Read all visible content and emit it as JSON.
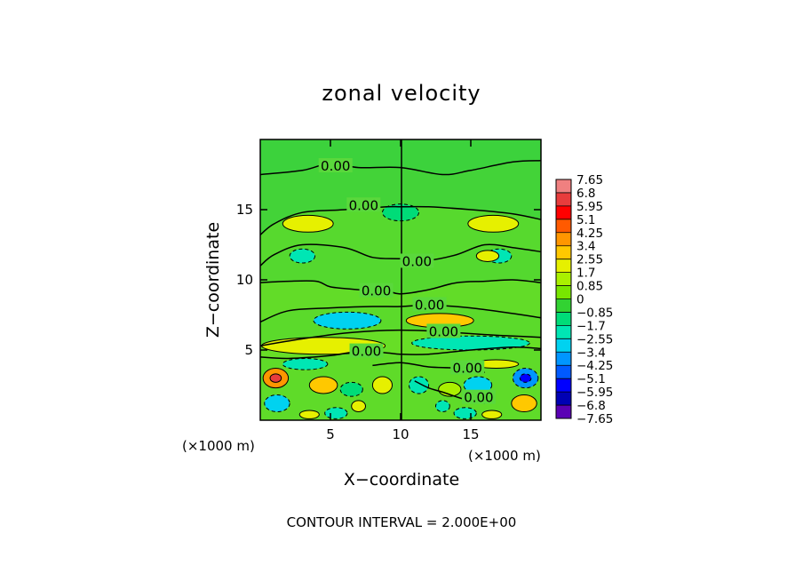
{
  "chart_data": {
    "type": "contour",
    "title": "zonal velocity",
    "xlabel": "X−coordinate",
    "ylabel": "Z−coordinate",
    "x_unit_left": "(×1000 m)",
    "x_unit_right": "(×1000 m)",
    "xlim": [
      0,
      20
    ],
    "ylim": [
      0,
      20
    ],
    "x_ticks": [
      {
        "value": 5,
        "label": "5"
      },
      {
        "value": 10,
        "label": "10"
      },
      {
        "value": 15,
        "label": "15"
      }
    ],
    "y_ticks": [
      {
        "value": 5,
        "label": "5"
      },
      {
        "value": 10,
        "label": "10"
      },
      {
        "value": 15,
        "label": "15"
      }
    ],
    "zero_contours": [
      {
        "points": [
          [
            0,
            17.5
          ],
          [
            3,
            17.8
          ],
          [
            5,
            18.3
          ],
          [
            7,
            18.0
          ],
          [
            10,
            18.0
          ],
          [
            13,
            17.5
          ],
          [
            15,
            17.8
          ],
          [
            18,
            18.4
          ],
          [
            20,
            18.5
          ]
        ],
        "label": "0.00",
        "label_at": [
          5.3,
          18.1
        ]
      },
      {
        "points": [
          [
            0,
            13.2
          ],
          [
            1,
            14.0
          ],
          [
            3,
            14.8
          ],
          [
            6,
            15.0
          ],
          [
            9,
            15.2
          ],
          [
            10,
            15.2
          ],
          [
            12,
            15.2
          ],
          [
            15,
            15.0
          ],
          [
            18,
            14.7
          ],
          [
            20,
            14.3
          ]
        ],
        "label": "0.00",
        "label_at": [
          7.3,
          15.3
        ]
      },
      {
        "points": [
          [
            0,
            11.0
          ],
          [
            1,
            11.8
          ],
          [
            3,
            12.5
          ],
          [
            6,
            12.3
          ],
          [
            8,
            11.6
          ],
          [
            10,
            11.5
          ],
          [
            12,
            11.4
          ],
          [
            14,
            11.8
          ],
          [
            16,
            12.5
          ],
          [
            18,
            12.3
          ],
          [
            20,
            12.0
          ]
        ],
        "label": "0.00",
        "label_at": [
          11.1,
          11.3
        ]
      },
      {
        "points": [
          [
            0,
            9.8
          ],
          [
            2,
            9.9
          ],
          [
            4,
            9.9
          ],
          [
            5,
            9.5
          ],
          [
            7,
            9.3
          ],
          [
            9,
            9.2
          ],
          [
            10,
            9.0
          ],
          [
            12,
            9.3
          ],
          [
            14,
            9.8
          ],
          [
            16,
            9.9
          ],
          [
            18,
            10.0
          ],
          [
            20,
            9.8
          ]
        ],
        "label": "0.00",
        "label_at": [
          8.2,
          9.2
        ]
      },
      {
        "points": [
          [
            0,
            7.0
          ],
          [
            2,
            7.8
          ],
          [
            5,
            8.0
          ],
          [
            8,
            8.1
          ],
          [
            10,
            8.1
          ],
          [
            12,
            8.2
          ],
          [
            15,
            8.0
          ],
          [
            18,
            7.6
          ],
          [
            20,
            7.3
          ]
        ],
        "label": "0.00",
        "label_at": [
          12.0,
          8.2
        ]
      },
      {
        "points": [
          [
            0,
            5.3
          ],
          [
            3,
            5.8
          ],
          [
            6,
            6.2
          ],
          [
            9,
            6.4
          ],
          [
            11,
            6.4
          ],
          [
            13,
            6.3
          ],
          [
            16,
            6.1
          ],
          [
            18,
            6.0
          ],
          [
            20,
            5.9
          ]
        ],
        "label": "0.00",
        "label_at": [
          13.0,
          6.3
        ]
      },
      {
        "points": [
          [
            0,
            4.5
          ],
          [
            2,
            4.4
          ],
          [
            5,
            4.6
          ],
          [
            7,
            4.9
          ],
          [
            9,
            4.8
          ],
          [
            10,
            4.7
          ],
          [
            12,
            4.7
          ],
          [
            15,
            5.0
          ],
          [
            18,
            5.2
          ],
          [
            20,
            5.1
          ]
        ],
        "label": "0.00",
        "label_at": [
          7.5,
          4.9
        ]
      },
      {
        "points": [
          [
            8,
            3.9
          ],
          [
            10,
            4.1
          ],
          [
            12,
            3.8
          ],
          [
            14,
            3.7
          ],
          [
            16,
            3.4
          ]
        ],
        "label": "0.00",
        "label_at": [
          14.7,
          3.7
        ]
      },
      {
        "points": [
          [
            11,
            2.8
          ],
          [
            12,
            2.3
          ],
          [
            13,
            2.0
          ],
          [
            14.5,
            1.5
          ],
          [
            16,
            1.2
          ]
        ],
        "label": "0.00",
        "label_at": [
          15.5,
          1.6
        ]
      }
    ],
    "features": [
      {
        "kind": "pos",
        "cx": 3.4,
        "cy": 14.0,
        "rx": 1.8,
        "ry": 0.6,
        "v": 2.2
      },
      {
        "kind": "pos",
        "cx": 16.6,
        "cy": 14.0,
        "rx": 1.8,
        "ry": 0.6,
        "v": 2.2
      },
      {
        "kind": "neg",
        "cx": 10.0,
        "cy": 14.8,
        "rx": 1.3,
        "ry": 0.6,
        "v": -1.5
      },
      {
        "kind": "neg",
        "cx": 3.0,
        "cy": 11.7,
        "rx": 0.9,
        "ry": 0.5,
        "v": -1.8
      },
      {
        "kind": "neg",
        "cx": 17.0,
        "cy": 11.7,
        "rx": 0.9,
        "ry": 0.5,
        "v": -1.8
      },
      {
        "kind": "pos",
        "cx": 16.2,
        "cy": 11.7,
        "rx": 0.8,
        "ry": 0.4,
        "v": 2.0
      },
      {
        "kind": "neg",
        "cx": 6.2,
        "cy": 7.1,
        "rx": 2.4,
        "ry": 0.6,
        "v": -2.6
      },
      {
        "kind": "pos",
        "cx": 12.8,
        "cy": 7.1,
        "rx": 2.4,
        "ry": 0.5,
        "v": 2.8
      },
      {
        "kind": "pos",
        "cx": 4.5,
        "cy": 5.3,
        "rx": 4.4,
        "ry": 0.6,
        "v": 2.5
      },
      {
        "kind": "neg",
        "cx": 15.0,
        "cy": 5.5,
        "rx": 4.2,
        "ry": 0.5,
        "v": -2.2
      },
      {
        "kind": "neg",
        "cx": 3.2,
        "cy": 4.0,
        "rx": 1.6,
        "ry": 0.4,
        "v": -1.8
      },
      {
        "kind": "pos",
        "cx": 16.8,
        "cy": 4.0,
        "rx": 1.6,
        "ry": 0.3,
        "v": 2.0
      },
      {
        "kind": "pos",
        "cx": 1.1,
        "cy": 3.0,
        "rx": 0.9,
        "ry": 0.7,
        "v": 4.0
      },
      {
        "kind": "pos",
        "cx": 1.1,
        "cy": 3.0,
        "rx": 0.4,
        "ry": 0.3,
        "v": 6.0
      },
      {
        "kind": "neg",
        "cx": 18.9,
        "cy": 3.0,
        "rx": 0.9,
        "ry": 0.7,
        "v": -4.0
      },
      {
        "kind": "neg",
        "cx": 18.9,
        "cy": 3.0,
        "rx": 0.4,
        "ry": 0.3,
        "v": -5.8
      },
      {
        "kind": "pos",
        "cx": 4.5,
        "cy": 2.5,
        "rx": 1.0,
        "ry": 0.6,
        "v": 2.6
      },
      {
        "kind": "neg",
        "cx": 15.5,
        "cy": 2.5,
        "rx": 1.0,
        "ry": 0.6,
        "v": -2.6
      },
      {
        "kind": "neg",
        "cx": 6.5,
        "cy": 2.2,
        "rx": 0.8,
        "ry": 0.5,
        "v": -1.6
      },
      {
        "kind": "pos",
        "cx": 13.5,
        "cy": 2.2,
        "rx": 0.8,
        "ry": 0.5,
        "v": 1.6
      },
      {
        "kind": "pos",
        "cx": 8.7,
        "cy": 2.5,
        "rx": 0.7,
        "ry": 0.6,
        "v": 2.3
      },
      {
        "kind": "neg",
        "cx": 11.3,
        "cy": 2.5,
        "rx": 0.7,
        "ry": 0.6,
        "v": -2.3
      },
      {
        "kind": "neg",
        "cx": 1.2,
        "cy": 1.2,
        "rx": 0.9,
        "ry": 0.6,
        "v": -3.0
      },
      {
        "kind": "pos",
        "cx": 18.8,
        "cy": 1.2,
        "rx": 0.9,
        "ry": 0.6,
        "v": 2.8
      },
      {
        "kind": "pos",
        "cx": 3.5,
        "cy": 0.4,
        "rx": 0.7,
        "ry": 0.3,
        "v": 1.8
      },
      {
        "kind": "neg",
        "cx": 5.4,
        "cy": 0.5,
        "rx": 0.8,
        "ry": 0.4,
        "v": -2.2
      },
      {
        "kind": "pos",
        "cx": 7.0,
        "cy": 1.0,
        "rx": 0.5,
        "ry": 0.4,
        "v": 2.0
      },
      {
        "kind": "neg",
        "cx": 14.6,
        "cy": 0.5,
        "rx": 0.8,
        "ry": 0.4,
        "v": -2.2
      },
      {
        "kind": "pos",
        "cx": 16.5,
        "cy": 0.4,
        "rx": 0.7,
        "ry": 0.3,
        "v": 1.8
      },
      {
        "kind": "neg",
        "cx": 13.0,
        "cy": 1.0,
        "rx": 0.5,
        "ry": 0.4,
        "v": -2.0
      }
    ],
    "colorbar": {
      "levels": [
        "7.65",
        "6.8",
        "5.95",
        "5.1",
        "4.25",
        "3.4",
        "2.55",
        "1.7",
        "0.85",
        "0",
        "−0.85",
        "−1.7",
        "−2.55",
        "−3.4",
        "−4.25",
        "−5.1",
        "−5.95",
        "−6.8",
        "−7.65"
      ],
      "colors": [
        "#f08080",
        "#e83c3c",
        "#ff0000",
        "#ff5a00",
        "#ff9600",
        "#ffc800",
        "#e6f000",
        "#aaf000",
        "#78e600",
        "#32d232",
        "#00dc78",
        "#00e6b4",
        "#00d2f0",
        "#0096ff",
        "#005aff",
        "#0000ff",
        "#0000b4",
        "#5a00b4"
      ]
    },
    "contour_interval": "CONTOUR INTERVAL = 2.000E+00"
  }
}
